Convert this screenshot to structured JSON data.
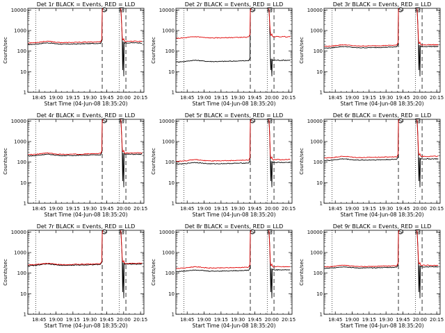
{
  "chart_data": [
    {
      "type": "line",
      "title": "Det 1r BLACK = Events, RED = LLD",
      "xlabel": "Start Time (04-Jun-08 18:35:20)",
      "ylabel": "Counts/sec",
      "yscale": "log",
      "ylim": [
        1,
        12000
      ],
      "xlim": [
        "18:35",
        "20:18"
      ],
      "xticks": [
        "18:45",
        "19:00",
        "19:15",
        "19:30",
        "19:45",
        "20:00",
        "20:15"
      ],
      "yticks": [
        "1",
        "10",
        "100",
        "1000",
        "10000"
      ],
      "events_level": 210,
      "lld_level": 250,
      "series": [
        {
          "name": "BLACK",
          "color": "#000000"
        },
        {
          "name": "RED",
          "color": "#e00000"
        }
      ],
      "markers": [
        "S",
        "D"
      ]
    },
    {
      "type": "line",
      "title": "Det 2r BLACK = Events, RED = LLD",
      "xlabel": "Start Time (04-Jun-08 18:35:20)",
      "ylabel": "Counts/sec",
      "yscale": "log",
      "ylim": [
        1,
        12000
      ],
      "xlim": [
        "18:35",
        "20:18"
      ],
      "xticks": [
        "18:45",
        "19:00",
        "19:15",
        "19:30",
        "19:45",
        "20:00",
        "20:15"
      ],
      "yticks": [
        "1",
        "10",
        "100",
        "1000",
        "10000"
      ],
      "events_level": 30,
      "lld_level": 420,
      "series": [
        {
          "name": "BLACK",
          "color": "#000000"
        },
        {
          "name": "RED",
          "color": "#e00000"
        }
      ],
      "markers": [
        "S",
        "D"
      ]
    },
    {
      "type": "line",
      "title": "Det 3r BLACK = Events, RED = LLD",
      "xlabel": "Start Time (04-Jun-08 18:35:20)",
      "ylabel": "Counts/sec",
      "yscale": "log",
      "ylim": [
        1,
        12000
      ],
      "xlim": [
        "18:35",
        "20:18"
      ],
      "xticks": [
        "18:45",
        "19:00",
        "19:15",
        "19:30",
        "19:45",
        "20:00",
        "20:15"
      ],
      "yticks": [
        "1",
        "10",
        "100",
        "1000",
        "10000"
      ],
      "events_level": 140,
      "lld_level": 170,
      "series": [
        {
          "name": "BLACK",
          "color": "#000000"
        },
        {
          "name": "RED",
          "color": "#e00000"
        }
      ],
      "markers": [
        "S",
        "D"
      ]
    },
    {
      "type": "line",
      "title": "Det 4r BLACK = Events, RED = LLD",
      "xlabel": "Start Time (04-Jun-08 18:35:20)",
      "ylabel": "Counts/sec",
      "yscale": "log",
      "ylim": [
        1,
        12000
      ],
      "xlim": [
        "18:35",
        "20:18"
      ],
      "xticks": [
        "18:45",
        "19:00",
        "19:15",
        "19:30",
        "19:45",
        "20:00",
        "20:15"
      ],
      "yticks": [
        "1",
        "10",
        "100",
        "1000",
        "10000"
      ],
      "events_level": 200,
      "lld_level": 230,
      "series": [
        {
          "name": "BLACK",
          "color": "#000000"
        },
        {
          "name": "RED",
          "color": "#e00000"
        }
      ],
      "markers": [
        "S",
        "D"
      ]
    },
    {
      "type": "line",
      "title": "Det 5r BLACK = Events, RED = LLD",
      "xlabel": "Start Time (04-Jun-08 18:35:20)",
      "ylabel": "Counts/sec",
      "yscale": "log",
      "ylim": [
        1,
        12000
      ],
      "xlim": [
        "18:35",
        "20:18"
      ],
      "xticks": [
        "18:45",
        "19:00",
        "19:15",
        "19:30",
        "19:45",
        "20:00",
        "20:15"
      ],
      "yticks": [
        "1",
        "10",
        "100",
        "1000",
        "10000"
      ],
      "events_level": 80,
      "lld_level": 110,
      "series": [
        {
          "name": "BLACK",
          "color": "#000000"
        },
        {
          "name": "RED",
          "color": "#e00000"
        }
      ],
      "markers": [
        "S",
        "D"
      ]
    },
    {
      "type": "line",
      "title": "Det 6r BLACK = Events, RED = LLD",
      "xlabel": "Start Time (04-Jun-08 18:35:20)",
      "ylabel": "Counts/sec",
      "yscale": "log",
      "ylim": [
        1,
        12000
      ],
      "xlim": [
        "18:35",
        "20:18"
      ],
      "xticks": [
        "18:45",
        "19:00",
        "19:15",
        "19:30",
        "19:45",
        "20:00",
        "20:15"
      ],
      "yticks": [
        "1",
        "10",
        "100",
        "1000",
        "10000"
      ],
      "events_level": 120,
      "lld_level": 160,
      "series": [
        {
          "name": "BLACK",
          "color": "#000000"
        },
        {
          "name": "RED",
          "color": "#e00000"
        }
      ],
      "markers": [
        "S",
        "D"
      ]
    },
    {
      "type": "line",
      "title": "Det 7r BLACK = Events, RED = LLD",
      "xlabel": "Start Time (04-Jun-08 18:35:20)",
      "ylabel": "Counts/sec",
      "yscale": "log",
      "ylim": [
        1,
        12000
      ],
      "xlim": [
        "18:35",
        "20:18"
      ],
      "xticks": [
        "18:45",
        "19:00",
        "19:15",
        "19:30",
        "19:45",
        "20:00",
        "20:15"
      ],
      "yticks": [
        "1",
        "10",
        "100",
        "1000",
        "10000"
      ],
      "events_level": 230,
      "lld_level": 250,
      "series": [
        {
          "name": "BLACK",
          "color": "#000000"
        },
        {
          "name": "RED",
          "color": "#e00000"
        }
      ],
      "markers": [
        "S",
        "D"
      ]
    },
    {
      "type": "line",
      "title": "Det 8r BLACK = Events, RED = LLD",
      "xlabel": "Start Time (04-Jun-08 18:35:20)",
      "ylabel": "Counts/sec",
      "yscale": "log",
      "ylim": [
        1,
        12000
      ],
      "xlim": [
        "18:35",
        "20:18"
      ],
      "xticks": [
        "18:45",
        "19:00",
        "19:15",
        "19:30",
        "19:45",
        "20:00",
        "20:15"
      ],
      "yticks": [
        "1",
        "10",
        "100",
        "1000",
        "10000"
      ],
      "events_level": 120,
      "lld_level": 170,
      "series": [
        {
          "name": "BLACK",
          "color": "#000000"
        },
        {
          "name": "RED",
          "color": "#e00000"
        }
      ],
      "markers": [
        "S",
        "D"
      ]
    },
    {
      "type": "line",
      "title": "Det 9r BLACK = Events, RED = LLD",
      "xlabel": "Start Time (04-Jun-08 18:35:20)",
      "ylabel": "Counts/sec",
      "yscale": "log",
      "ylim": [
        1,
        12000
      ],
      "xlim": [
        "18:35",
        "20:18"
      ],
      "xticks": [
        "18:45",
        "19:00",
        "19:15",
        "19:30",
        "19:45",
        "20:00",
        "20:15"
      ],
      "yticks": [
        "1",
        "10",
        "100",
        "1000",
        "10000"
      ],
      "events_level": 170,
      "lld_level": 200,
      "series": [
        {
          "name": "BLACK",
          "color": "#000000"
        },
        {
          "name": "RED",
          "color": "#e00000"
        }
      ],
      "markers": [
        "S",
        "D"
      ]
    }
  ]
}
